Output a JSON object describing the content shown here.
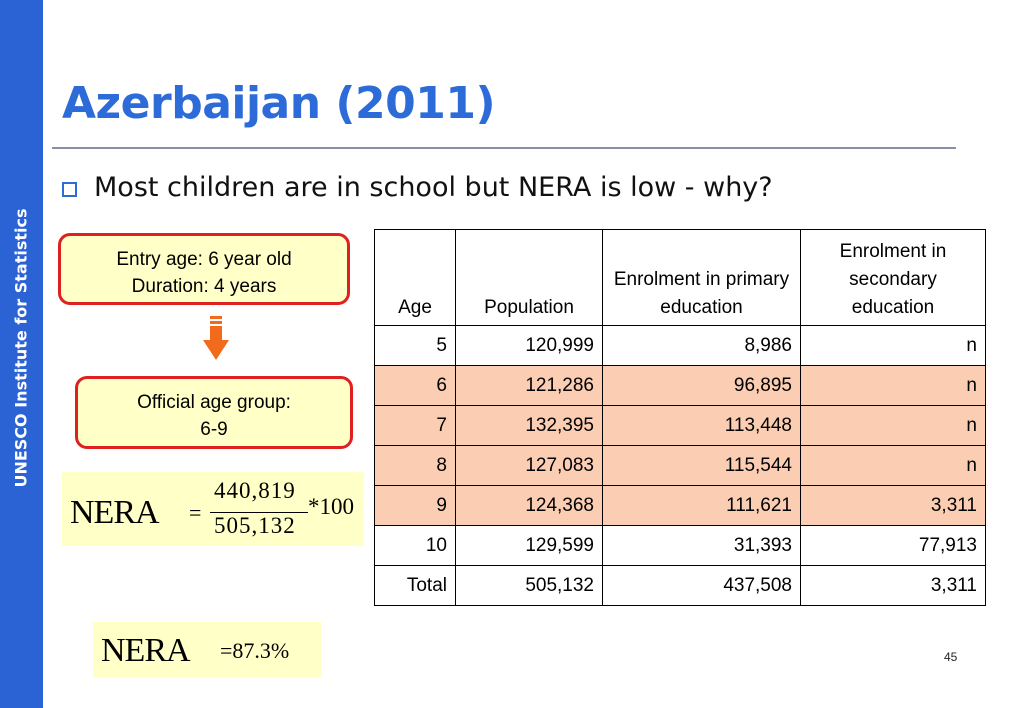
{
  "sidebar": {
    "label": "UNESCO Institute for Statistics"
  },
  "slide": {
    "title": "Azerbaijan (2011)",
    "bullet": "Most children are in school but NERA is low - why?",
    "page_number": "45"
  },
  "boxes": {
    "entry_line1": "Entry age: 6 year old",
    "entry_line2": "Duration: 4 years",
    "official_line1": "Official age group:",
    "official_line2": "6-9"
  },
  "formula": {
    "label": "NERA",
    "equals": "=",
    "numerator": "440,819",
    "denominator": "505,132",
    "multiplier": "*100",
    "result": "=87.3%"
  },
  "table": {
    "headers": [
      "Age",
      "Population",
      "Enrolment in primary education",
      "Enrolment in secondary education"
    ],
    "rows": [
      [
        "5",
        "120,999",
        "8,986",
        "n"
      ],
      [
        "6",
        "121,286",
        "96,895",
        "n"
      ],
      [
        "7",
        "132,395",
        "113,448",
        "n"
      ],
      [
        "8",
        "127,083",
        "115,544",
        "n"
      ],
      [
        "9",
        "124,368",
        "111,621",
        "3,311"
      ],
      [
        "10",
        "129,599",
        "31,393",
        "77,913"
      ],
      [
        "Total",
        "505,132",
        "437,508",
        "3,311"
      ]
    ],
    "highlight_color": "#fbcdb2"
  },
  "colors": {
    "sidebar": "#2b62d4",
    "title": "#2d6bd9",
    "box_fill": "#ffffc8",
    "box_border": "#e02020",
    "arrow": "#f26a1b"
  },
  "icons": {
    "bullet": "square-bullet-icon",
    "arrow": "down-arrow-icon"
  }
}
